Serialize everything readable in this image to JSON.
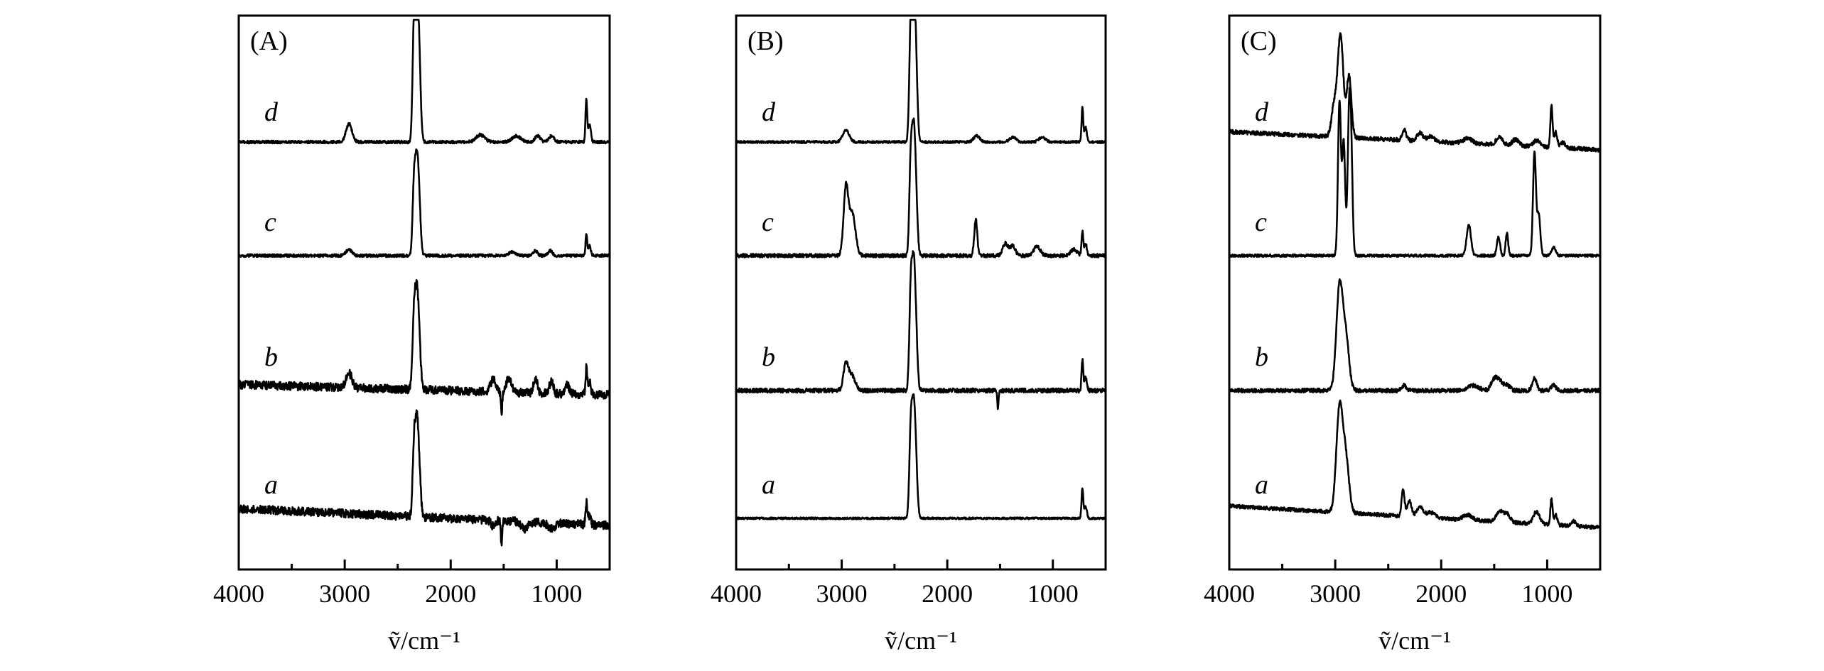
{
  "figure": {
    "panels": [
      {
        "label": "(A)",
        "traces": [
          {
            "label": "d",
            "peaks": [
              [
                2960,
                0.15,
                28
              ],
              [
                2345,
                1.0,
                14
              ],
              [
                2320,
                0.85,
                14
              ],
              [
                2300,
                0.7,
                16
              ],
              [
                1720,
                0.06,
                40
              ],
              [
                1380,
                0.05,
                40
              ],
              [
                1180,
                0.05,
                25
              ],
              [
                1050,
                0.05,
                25
              ],
              [
                720,
                0.35,
                8
              ],
              [
                690,
                0.15,
                12
              ]
            ],
            "noise": 0.012,
            "slope": 0
          },
          {
            "label": "c",
            "peaks": [
              [
                2960,
                0.05,
                28
              ],
              [
                2345,
                0.62,
                14
              ],
              [
                2320,
                0.55,
                14
              ],
              [
                2300,
                0.45,
                16
              ],
              [
                1420,
                0.03,
                30
              ],
              [
                1200,
                0.04,
                20
              ],
              [
                1060,
                0.04,
                20
              ],
              [
                720,
                0.17,
                8
              ],
              [
                690,
                0.08,
                12
              ]
            ],
            "noise": 0.012,
            "slope": 0
          },
          {
            "label": "b",
            "peaks": [
              [
                2960,
                0.12,
                28
              ],
              [
                2345,
                0.65,
                14
              ],
              [
                2320,
                0.55,
                14
              ],
              [
                2300,
                0.42,
                16
              ],
              [
                1600,
                0.1,
                25
              ],
              [
                1520,
                -0.2,
                6
              ],
              [
                1450,
                0.12,
                25
              ],
              [
                1200,
                0.12,
                18
              ],
              [
                1050,
                0.1,
                18
              ],
              [
                900,
                0.08,
                18
              ],
              [
                720,
                0.22,
                8
              ],
              [
                690,
                0.1,
                12
              ]
            ],
            "noise": 0.035,
            "slope": -0.05
          },
          {
            "label": "a",
            "peaks": [
              [
                2345,
                0.6,
                14
              ],
              [
                2320,
                0.55,
                14
              ],
              [
                2300,
                0.4,
                16
              ],
              [
                1520,
                -0.22,
                6
              ],
              [
                1600,
                -0.05,
                20
              ],
              [
                1300,
                -0.06,
                30
              ],
              [
                1050,
                -0.05,
                30
              ],
              [
                720,
                0.18,
                8
              ],
              [
                690,
                0.08,
                12
              ]
            ],
            "noise": 0.035,
            "slope": -0.08
          }
        ]
      },
      {
        "label": "(B)",
        "traces": [
          {
            "label": "d",
            "peaks": [
              [
                2960,
                0.1,
                30
              ],
              [
                2345,
                1.0,
                14
              ],
              [
                2320,
                0.85,
                14
              ],
              [
                2300,
                0.7,
                16
              ],
              [
                1720,
                0.05,
                30
              ],
              [
                1380,
                0.04,
                30
              ],
              [
                1100,
                0.04,
                30
              ],
              [
                720,
                0.28,
                8
              ],
              [
                690,
                0.12,
                12
              ]
            ],
            "noise": 0.01,
            "slope": 0
          },
          {
            "label": "c",
            "peaks": [
              [
                2960,
                0.55,
                22
              ],
              [
                2900,
                0.35,
                30
              ],
              [
                2345,
                0.8,
                14
              ],
              [
                2320,
                0.72,
                14
              ],
              [
                2300,
                0.55,
                16
              ],
              [
                1730,
                0.3,
                14
              ],
              [
                1450,
                0.1,
                25
              ],
              [
                1380,
                0.08,
                25
              ],
              [
                1150,
                0.08,
                30
              ],
              [
                800,
                0.05,
                30
              ],
              [
                720,
                0.2,
                8
              ],
              [
                690,
                0.1,
                12
              ]
            ],
            "noise": 0.015,
            "slope": 0
          },
          {
            "label": "b",
            "peaks": [
              [
                2960,
                0.22,
                24
              ],
              [
                2900,
                0.12,
                30
              ],
              [
                2345,
                0.85,
                14
              ],
              [
                2320,
                0.72,
                14
              ],
              [
                2300,
                0.55,
                16
              ],
              [
                1520,
                -0.15,
                6
              ],
              [
                720,
                0.25,
                8
              ],
              [
                690,
                0.1,
                12
              ]
            ],
            "noise": 0.018,
            "slope": 0
          },
          {
            "label": "a",
            "peaks": [
              [
                2345,
                0.75,
                14
              ],
              [
                2320,
                0.65,
                14
              ],
              [
                2300,
                0.5,
                16
              ],
              [
                720,
                0.25,
                8
              ],
              [
                690,
                0.1,
                12
              ]
            ],
            "noise": 0.008,
            "slope": 0
          }
        ]
      },
      {
        "label": "(C)",
        "traces": [
          {
            "label": "d",
            "peaks": [
              [
                3010,
                0.3,
                25
              ],
              [
                2950,
                1.0,
                26
              ],
              [
                2870,
                0.6,
                22
              ],
              [
                2350,
                0.1,
                20
              ],
              [
                2200,
                0.08,
                30
              ],
              [
                2100,
                0.05,
                30
              ],
              [
                1750,
                0.05,
                40
              ],
              [
                1450,
                0.08,
                30
              ],
              [
                1300,
                0.06,
                30
              ],
              [
                1100,
                0.06,
                30
              ],
              [
                960,
                0.4,
                10
              ],
              [
                920,
                0.15,
                15
              ],
              [
                850,
                0.05,
                25
              ]
            ],
            "noise": 0.02,
            "slope": -0.1
          },
          {
            "label": "c",
            "peaks": [
              [
                2960,
                1.5,
                14
              ],
              [
                2920,
                1.1,
                14
              ],
              [
                2870,
                1.2,
                14
              ],
              [
                2850,
                0.9,
                14
              ],
              [
                1740,
                0.3,
                20
              ],
              [
                1460,
                0.18,
                15
              ],
              [
                1380,
                0.22,
                12
              ],
              [
                1120,
                1.0,
                14
              ],
              [
                1080,
                0.4,
                15
              ],
              [
                940,
                0.08,
                20
              ]
            ],
            "noise": 0.012,
            "slope": 0
          },
          {
            "label": "b",
            "peaks": [
              [
                2960,
                1.0,
                30
              ],
              [
                2900,
                0.5,
                30
              ],
              [
                2350,
                0.05,
                20
              ],
              [
                1700,
                0.05,
                50
              ],
              [
                1500,
                0.1,
                30
              ],
              [
                1450,
                0.08,
                30
              ],
              [
                1380,
                0.05,
                30
              ],
              [
                1120,
                0.12,
                20
              ],
              [
                940,
                0.06,
                20
              ]
            ],
            "noise": 0.02,
            "slope": 0
          },
          {
            "label": "a",
            "peaks": [
              [
                2960,
                1.0,
                30
              ],
              [
                2900,
                0.5,
                30
              ],
              [
                2360,
                0.25,
                14
              ],
              [
                2300,
                0.15,
                20
              ],
              [
                2200,
                0.1,
                30
              ],
              [
                2100,
                0.05,
                40
              ],
              [
                1750,
                0.05,
                40
              ],
              [
                1450,
                0.1,
                30
              ],
              [
                1380,
                0.08,
                30
              ],
              [
                1100,
                0.12,
                30
              ],
              [
                960,
                0.25,
                10
              ],
              [
                920,
                0.1,
                15
              ],
              [
                750,
                0.05,
                20
              ]
            ],
            "noise": 0.018,
            "slope": -0.12
          }
        ]
      }
    ]
  },
  "chart_data": [
    {
      "type": "line",
      "title": "(A)",
      "xlabel": "ṽ/cm⁻¹",
      "ylabel": "",
      "xlim": [
        4000,
        500
      ],
      "x_ticks": [
        4000,
        3000,
        2000,
        1000
      ],
      "x_tick_labels": [
        "4000",
        "3000",
        "2000",
        "1000"
      ],
      "grid": false,
      "series": [
        {
          "name": "d",
          "peak_positions": [
            2960,
            2345,
            2320,
            1720,
            1380,
            1180,
            1050,
            720
          ]
        },
        {
          "name": "c",
          "peak_positions": [
            2960,
            2345,
            2320,
            1420,
            1200,
            1060,
            720
          ]
        },
        {
          "name": "b",
          "peak_positions": [
            2960,
            2345,
            2320,
            1600,
            1520,
            1450,
            1200,
            1050,
            900,
            720
          ]
        },
        {
          "name": "a",
          "peak_positions": [
            2345,
            2320,
            1520,
            720
          ]
        }
      ]
    },
    {
      "type": "line",
      "title": "(B)",
      "xlabel": "ṽ/cm⁻¹",
      "ylabel": "",
      "xlim": [
        4000,
        500
      ],
      "x_ticks": [
        4000,
        3000,
        2000,
        1000
      ],
      "x_tick_labels": [
        "4000",
        "3000",
        "2000",
        "1000"
      ],
      "grid": false,
      "series": [
        {
          "name": "d",
          "peak_positions": [
            2960,
            2345,
            2320,
            1720,
            1380,
            1100,
            720
          ]
        },
        {
          "name": "c",
          "peak_positions": [
            2960,
            2900,
            2345,
            2320,
            1730,
            1450,
            1380,
            1150,
            720
          ]
        },
        {
          "name": "b",
          "peak_positions": [
            2960,
            2900,
            2345,
            2320,
            1520,
            720
          ]
        },
        {
          "name": "a",
          "peak_positions": [
            2345,
            2320,
            720
          ]
        }
      ]
    },
    {
      "type": "line",
      "title": "(C)",
      "xlabel": "ṽ/cm⁻¹",
      "ylabel": "",
      "xlim": [
        4000,
        500
      ],
      "x_ticks": [
        4000,
        3000,
        2000,
        1000
      ],
      "x_tick_labels": [
        "4000",
        "3000",
        "2000",
        "1000"
      ],
      "grid": false,
      "series": [
        {
          "name": "d",
          "peak_positions": [
            3010,
            2950,
            2870,
            2350,
            2200,
            1450,
            1300,
            1100,
            960
          ]
        },
        {
          "name": "c",
          "peak_positions": [
            2960,
            2920,
            2870,
            2850,
            1740,
            1460,
            1380,
            1120,
            1080
          ]
        },
        {
          "name": "b",
          "peak_positions": [
            2960,
            2900,
            1500,
            1450,
            1120,
            940
          ]
        },
        {
          "name": "a",
          "peak_positions": [
            2960,
            2900,
            2360,
            2300,
            2200,
            1450,
            1380,
            1100,
            960
          ]
        }
      ]
    }
  ]
}
